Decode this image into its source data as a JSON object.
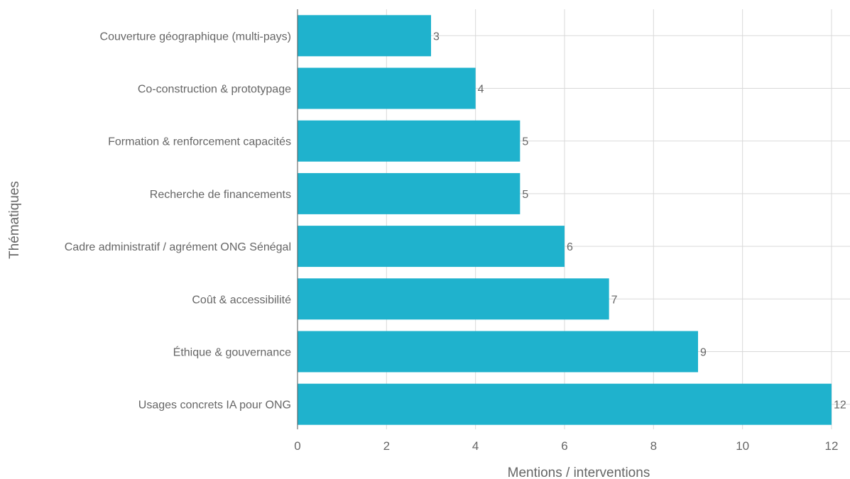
{
  "chart_data": {
    "type": "bar",
    "orientation": "horizontal",
    "categories": [
      "Couverture géographique (multi-pays)",
      "Co-construction & prototypage",
      "Formation & renforcement capacités",
      "Recherche de financements",
      "Cadre administratif / agrément ONG Sénégal",
      "Coût & accessibilité",
      "Éthique & gouvernance",
      "Usages concrets IA pour ONG"
    ],
    "values": [
      3,
      4,
      5,
      5,
      6,
      7,
      9,
      12
    ],
    "xlabel": "Mentions / interventions",
    "ylabel": "Thématiques",
    "xlim": [
      0,
      12
    ],
    "xticks": [
      0,
      2,
      4,
      6,
      8,
      10,
      12
    ],
    "grid": true,
    "bar_color": "#1fb2cd",
    "data_labels": true
  }
}
